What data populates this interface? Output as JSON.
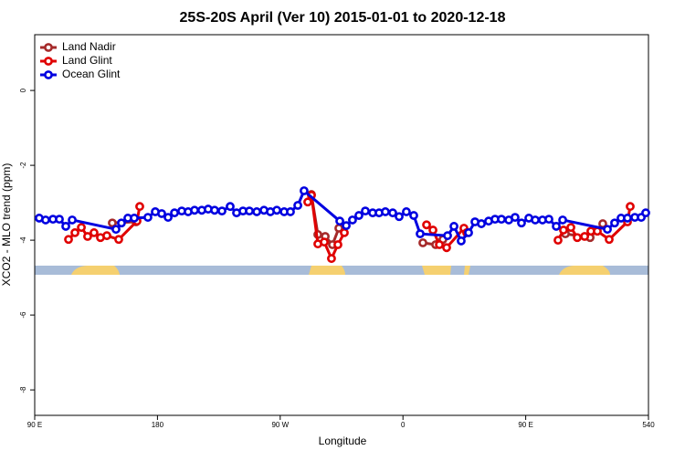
{
  "chart_data": {
    "type": "line",
    "title": "25S-20S April (Ver 10)   2015-01-01 to 2020-12-18",
    "xlabel": "Longitude",
    "ylabel": "XCO2 - MLO trend (ppm)",
    "xlim": [
      90,
      540
    ],
    "ylim": [
      -8.68,
      1.49
    ],
    "xticks": [
      {
        "value": 90,
        "label": "90 E"
      },
      180,
      {
        "value": 270,
        "label": "90 W"
      },
      {
        "value": 360,
        "label": "0"
      },
      {
        "value": 450,
        "label": "90 E"
      },
      540
    ],
    "yticks": [
      0,
      -2,
      -4,
      -6,
      -8
    ],
    "legend": "top-left",
    "series": [
      {
        "name": "Land Nadir",
        "color": "#a52a2a",
        "x": [
          146.9,
          164.3,
          null,
          292.9,
          297.6,
          303.0,
          308.3,
          313.0,
          null,
          374.6,
          384.0,
          389.3,
          null,
          479.1,
          497.2,
          506.5
        ],
        "values": [
          -3.54,
          -3.51,
          null,
          -2.78,
          -3.85,
          -3.9,
          -4.12,
          -3.68,
          null,
          -4.07,
          -4.12,
          -3.98,
          null,
          -3.83,
          -3.93,
          -3.56
        ]
      },
      {
        "name": "Land Glint",
        "color": "#e00000",
        "x": [
          114.8,
          119.5,
          124.2,
          128.8,
          133.5,
          138.2,
          142.9,
          151.6,
          165.0,
          167.0,
          null,
          290.2,
          292.9,
          297.6,
          302.3,
          307.6,
          312.3,
          317.0,
          null,
          377.3,
          382.0,
          386.7,
          392.0,
          404.7,
          406.7,
          null,
          473.7,
          477.7,
          483.1,
          487.8,
          493.2,
          497.8,
          502.5,
          511.2,
          524.6,
          526.6
        ],
        "values": [
          -3.98,
          -3.8,
          -3.66,
          -3.9,
          -3.8,
          -3.93,
          -3.88,
          -3.98,
          -3.49,
          -3.1,
          null,
          -2.98,
          -2.8,
          -4.1,
          -4.05,
          -4.49,
          -4.12,
          -3.8,
          null,
          -3.59,
          -3.73,
          -4.12,
          -4.2,
          -3.68,
          -3.8,
          null,
          -4.0,
          -3.73,
          -3.66,
          -3.93,
          -3.9,
          -3.76,
          -3.76,
          -3.98,
          -3.51,
          -3.1
        ]
      },
      {
        "name": "Ocean Glint",
        "color": "#0000e0",
        "x": [
          93.3,
          98.0,
          103.4,
          108.1,
          112.8,
          117.5,
          149.6,
          153.6,
          158.3,
          163.0,
          173.0,
          178.4,
          183.1,
          187.8,
          192.5,
          197.8,
          202.5,
          207.2,
          212.5,
          217.2,
          221.9,
          227.3,
          233.3,
          238.0,
          242.7,
          247.4,
          252.8,
          258.1,
          262.8,
          267.5,
          272.9,
          277.5,
          282.9,
          287.5,
          313.7,
          318.4,
          323.0,
          327.7,
          332.4,
          337.8,
          342.5,
          347.1,
          352.5,
          357.2,
          362.5,
          367.9,
          372.6,
          392.7,
          397.4,
          402.7,
          408.1,
          412.8,
          417.5,
          422.8,
          427.5,
          432.2,
          437.6,
          442.2,
          446.9,
          452.3,
          457.0,
          462.3,
          467.0,
          472.4,
          477.1,
          509.9,
          515.2,
          519.9,
          524.6,
          530.0,
          534.7,
          538.0
        ],
        "values": [
          -3.41,
          -3.46,
          -3.44,
          -3.44,
          -3.63,
          -3.46,
          -3.71,
          -3.54,
          -3.41,
          -3.41,
          -3.39,
          -3.24,
          -3.29,
          -3.39,
          -3.27,
          -3.22,
          -3.24,
          -3.2,
          -3.2,
          -3.17,
          -3.2,
          -3.22,
          -3.1,
          -3.27,
          -3.22,
          -3.22,
          -3.24,
          -3.2,
          -3.24,
          -3.2,
          -3.24,
          -3.24,
          -3.07,
          -2.68,
          -3.49,
          -3.61,
          -3.46,
          -3.34,
          -3.22,
          -3.27,
          -3.27,
          -3.24,
          -3.27,
          -3.37,
          -3.24,
          -3.34,
          -3.83,
          -3.88,
          -3.63,
          -4.02,
          -3.8,
          -3.51,
          -3.56,
          -3.49,
          -3.44,
          -3.44,
          -3.46,
          -3.39,
          -3.54,
          -3.41,
          -3.46,
          -3.46,
          -3.44,
          -3.63,
          -3.46,
          -3.71,
          -3.54,
          -3.41,
          -3.41,
          -3.39,
          -3.39,
          -3.27
        ]
      }
    ]
  }
}
